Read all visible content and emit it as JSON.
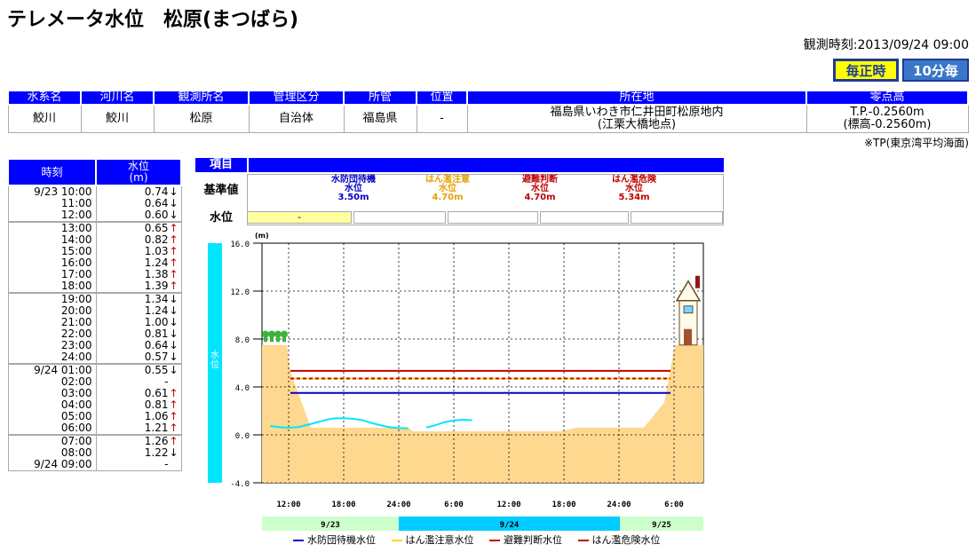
{
  "header": {
    "title": "テレメータ水位　松原(まつばら)",
    "obs_time": "観測時刻:2013/09/24 09:00",
    "btn_hourly": "毎正時",
    "btn_10min": "10分毎"
  },
  "station": {
    "headers": [
      "水系名",
      "河川名",
      "観測所名",
      "管理区分",
      "所管",
      "位置",
      "所在地",
      "零点高"
    ],
    "values": [
      "鮫川",
      "鮫川",
      "松原",
      "自治体",
      "福島県",
      "-",
      "福島県いわき市仁井田町松原地内",
      "T.P.-0.2560m"
    ],
    "location_sub": "(江栗大橋地点)",
    "zero_sub": "(標高-0.2560m)"
  },
  "tp_note": "※TP(東京湾平均海面)",
  "levels": {
    "col_time": "時刻",
    "col_level": "水位",
    "col_unit": "(m)",
    "rows": [
      {
        "t": "9/23 10:00",
        "v": "0.74",
        "a": "↓"
      },
      {
        "t": "11:00",
        "v": "0.64",
        "a": "↓"
      },
      {
        "t": "12:00",
        "v": "0.60",
        "a": "↓"
      },
      {
        "t": "13:00",
        "v": "0.65",
        "a": "↑"
      },
      {
        "t": "14:00",
        "v": "0.82",
        "a": "↑"
      },
      {
        "t": "15:00",
        "v": "1.03",
        "a": "↑"
      },
      {
        "t": "16:00",
        "v": "1.24",
        "a": "↑"
      },
      {
        "t": "17:00",
        "v": "1.38",
        "a": "↑"
      },
      {
        "t": "18:00",
        "v": "1.39",
        "a": "↑"
      },
      {
        "t": "19:00",
        "v": "1.34",
        "a": "↓"
      },
      {
        "t": "20:00",
        "v": "1.24",
        "a": "↓"
      },
      {
        "t": "21:00",
        "v": "1.00",
        "a": "↓"
      },
      {
        "t": "22:00",
        "v": "0.81",
        "a": "↓"
      },
      {
        "t": "23:00",
        "v": "0.64",
        "a": "↓"
      },
      {
        "t": "24:00",
        "v": "0.57",
        "a": "↓"
      },
      {
        "t": "9/24 01:00",
        "v": "0.55",
        "a": "↓"
      },
      {
        "t": "02:00",
        "v": "-",
        "a": ""
      },
      {
        "t": "03:00",
        "v": "0.61",
        "a": "↑"
      },
      {
        "t": "04:00",
        "v": "0.81",
        "a": "↑"
      },
      {
        "t": "05:00",
        "v": "1.06",
        "a": "↑"
      },
      {
        "t": "06:00",
        "v": "1.21",
        "a": "↑"
      },
      {
        "t": "07:00",
        "v": "1.26",
        "a": "↑"
      },
      {
        "t": "08:00",
        "v": "1.22",
        "a": "↓"
      },
      {
        "t": "9/24 09:00",
        "v": "-",
        "a": ""
      }
    ]
  },
  "reference": {
    "item_label": "項目",
    "std_label": "基準値",
    "level_label": "水位",
    "current_level": "-",
    "standards": [
      {
        "name1": "水防団待機",
        "name2": "水位",
        "value": "3.50m",
        "color": "#0000c8"
      },
      {
        "name1": "はん濫注意",
        "name2": "水位",
        "value": "4.70m",
        "color": "#e6a000"
      },
      {
        "name1": "避難判断",
        "name2": "水位",
        "value": "4.70m",
        "color": "#c00000"
      },
      {
        "name1": "はん濫危険",
        "name2": "水位",
        "value": "5.34m",
        "color": "#c00000"
      }
    ]
  },
  "chart": {
    "unit": "(m)",
    "side_label": "水位",
    "y_ticks": [
      "16.0",
      "12.0",
      "8.0",
      "4.0",
      "0.0",
      "-4.0"
    ],
    "x_ticks": [
      "12:00",
      "18:00",
      "24:00",
      "6:00",
      "12:00",
      "18:00",
      "24:00",
      "6:00"
    ],
    "dates": [
      "9/23",
      "9/24",
      "9/25"
    ],
    "date_colors": [
      "#ccffcc",
      "#00ccff",
      "#ccffcc"
    ],
    "legend": [
      "水防団待機水位",
      "はん濫注意水位",
      "避難判断水位",
      "はん濫危険水位"
    ]
  },
  "chart_data": {
    "type": "line",
    "ylim": [
      -4,
      16
    ],
    "x_hours": [
      10,
      11,
      12,
      13,
      14,
      15,
      16,
      17,
      18,
      19,
      20,
      21,
      22,
      23,
      24,
      25,
      27,
      28,
      29,
      30,
      31,
      32
    ],
    "series": [
      {
        "name": "水位",
        "values": [
          0.74,
          0.64,
          0.6,
          0.65,
          0.82,
          1.03,
          1.24,
          1.38,
          1.39,
          1.34,
          1.24,
          1.0,
          0.81,
          0.64,
          0.57,
          0.55,
          0.61,
          0.81,
          1.06,
          1.21,
          1.26,
          1.22
        ]
      }
    ],
    "thresholds": [
      {
        "name": "水防団待機水位",
        "value": 3.5,
        "color": "#0000c8",
        "dash": false
      },
      {
        "name": "はん濫注意水位",
        "value": 4.7,
        "color": "#ffd700",
        "dash": false
      },
      {
        "name": "避難判断水位",
        "value": 4.7,
        "color": "#c00000",
        "dash": true
      },
      {
        "name": "はん濫危険水位",
        "value": 5.34,
        "color": "#c00000",
        "dash": false
      }
    ]
  }
}
